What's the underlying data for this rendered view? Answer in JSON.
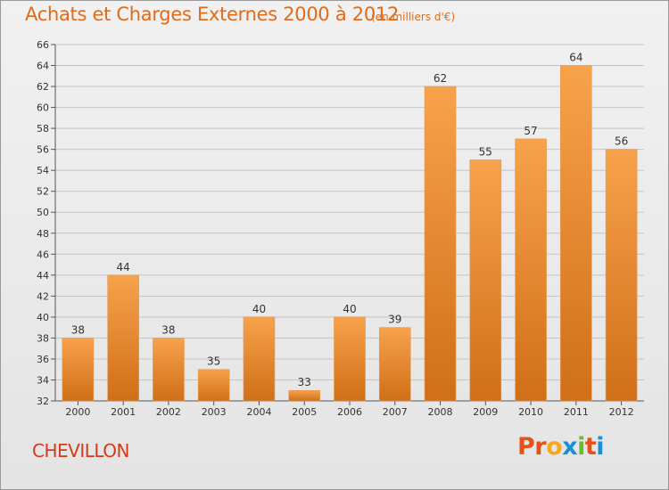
{
  "header": {
    "title": "Achats et Charges Externes 2000 à 2012",
    "subtitle": "(en milliers d'€)"
  },
  "footer": {
    "commune": "CHEVILLON",
    "logo_text": "Proxiti"
  },
  "colors": {
    "bar_top": "#f7a24c",
    "bar_bottom": "#d06f17",
    "title": "#e06b1a",
    "commune": "#d33a1a",
    "logo_letters": [
      "#e8501a",
      "#e8501a",
      "#f6a81c",
      "#1b8fd6",
      "#6abd2c",
      "#e8501a",
      "#1b8fd6"
    ]
  },
  "chart_data": {
    "type": "bar",
    "title": "Achats et Charges Externes 2000 à 2012",
    "subtitle": "(en milliers d'€)",
    "categories": [
      "2000",
      "2001",
      "2002",
      "2003",
      "2004",
      "2005",
      "2006",
      "2007",
      "2008",
      "2009",
      "2010",
      "2011",
      "2012"
    ],
    "values": [
      38,
      44,
      38,
      35,
      40,
      33,
      40,
      39,
      62,
      55,
      57,
      64,
      56
    ],
    "ylim": [
      32,
      66
    ],
    "yticks": [
      32,
      34,
      36,
      38,
      40,
      42,
      44,
      46,
      48,
      50,
      52,
      54,
      56,
      58,
      60,
      62,
      64,
      66
    ],
    "grid": true,
    "legend": "none"
  }
}
